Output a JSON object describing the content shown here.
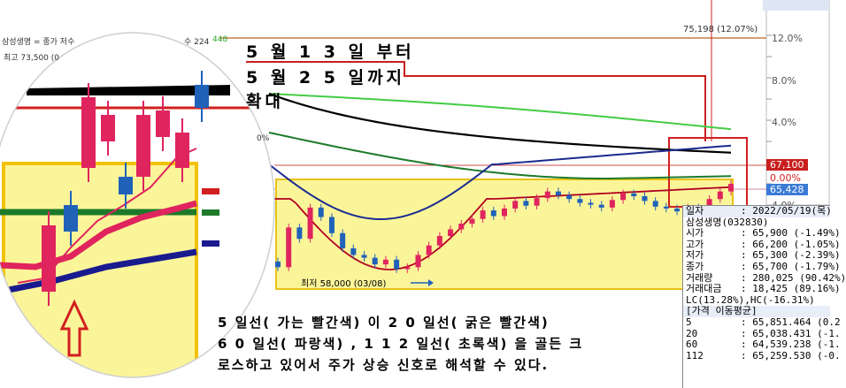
{
  "chart_data": {
    "type": "candlestick",
    "legend_fragments": {
      "top_left": "삼성생명 = 종가 저수",
      "top_mid": "수 224",
      "top_green": "448",
      "zoom_high": "최고 73,500 (0",
      "zoom_side_pct": "0%"
    },
    "peak_label": "75,198 (12.07%)",
    "low_label": "최저 58,000 (03/08)",
    "percent_ticks": [
      "12.0%",
      "8.0%",
      "4.0%",
      "0.00%",
      "4.0%"
    ],
    "current_price": "67,100",
    "current_price_color": "#c81e1e",
    "avg_price_tag": "65,428",
    "avg_price_color": "#3a7bd5",
    "up_color": "#e0245e",
    "down_color": "#1f62b8",
    "highlight_fill": "#fbf59a",
    "highlight_border": "#e8c21a",
    "ma_colors": {
      "ma5": "#e0245e",
      "ma20": "#b00020",
      "ma60": "#1a2b8f",
      "ma112": "#1d7a2a",
      "ma224": "#000000",
      "ma448": "#44cc44"
    },
    "series": [
      {
        "close": [
          58300,
          62500,
          61300,
          64600,
          63600,
          61900,
          60300,
          59600,
          59300,
          58600,
          59100,
          58100,
          58300,
          59600,
          60600,
          61600,
          62300,
          62900,
          63400,
          64300,
          63700,
          64500,
          65300,
          64800,
          65600,
          66300,
          65900,
          65500,
          65100,
          64900,
          64600,
          65400,
          66100,
          65800,
          65300,
          64700,
          64500,
          64200,
          64600,
          63800,
          65500,
          66300,
          67100
        ]
      }
    ]
  },
  "annotations": {
    "heading": [
      "5 월 1 3 일 부터",
      "5 월 2 5 일까지",
      "확대"
    ],
    "note": [
      "5 일선( 가는 빨간색) 이 2 0 일선( 굵은 빨간색)",
      "6 0 일선( 파랑색) , 1 1 2 일선( 초록색) 을 골든 크",
      "로스하고 있어서 주가 상승 신호로 해석할 수 있다."
    ]
  },
  "info_panel": {
    "rows": [
      {
        "k": "일자",
        "v": ": 2022/05/19(목)",
        "hdr": true
      },
      {
        "k": "삼성생명(032830)",
        "v": ""
      },
      {
        "k": "시가",
        "v": ": 65,900 (-1.49%)"
      },
      {
        "k": "고가",
        "v": ": 66,200 (-1.05%)"
      },
      {
        "k": "저가",
        "v": ": 65,300 (-2.39%)"
      },
      {
        "k": "종가",
        "v": ": 65,700 (-1.79%)"
      },
      {
        "k": "거래량",
        "v": ": 280,025 (90.42%)"
      },
      {
        "k": "거래대금",
        "v": ": 18,425 (89.16%)"
      },
      {
        "k": "LC(13.28%),HC(-16.31%)",
        "v": ""
      },
      {
        "k": "[가격 이동평균]",
        "v": "",
        "hdr": true
      },
      {
        "k": "5",
        "v": ": 65,851.464 (0.2"
      },
      {
        "k": "20",
        "v": ": 65,038.431 (-1."
      },
      {
        "k": "60",
        "v": ": 64,539.238 (-1."
      },
      {
        "k": "112",
        "v": ": 65,259.530 (-0."
      }
    ]
  }
}
